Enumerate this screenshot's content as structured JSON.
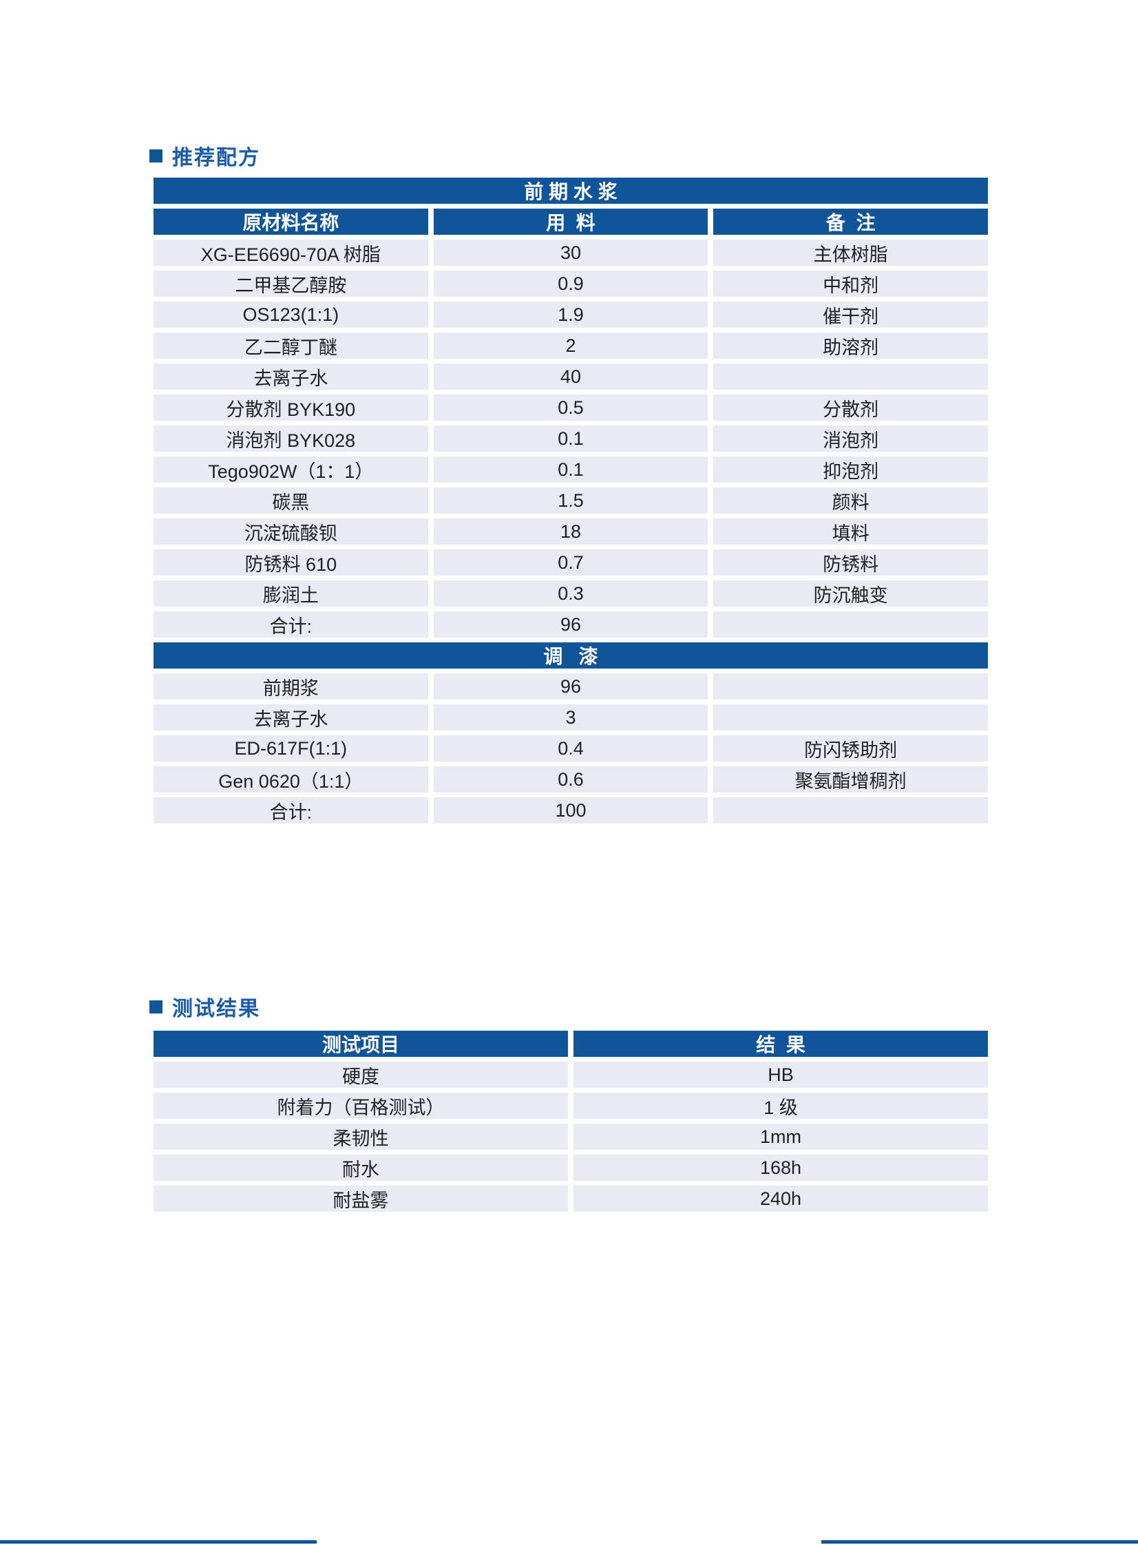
{
  "colors": {
    "table_header_blue": "#10559a",
    "section_title_blue": "#1a5ba9",
    "row_background": "#e9eaf3",
    "cell_text": "#1f2022"
  },
  "section1": {
    "title": "推荐配方",
    "table": {
      "group1_title": "前 期 水 浆",
      "columns": [
        "原材料名称",
        "用  料",
        "备  注"
      ],
      "group1_rows": [
        [
          "XG-EE6690-70A 树脂",
          "30",
          "主体树脂"
        ],
        [
          "二甲基乙醇胺",
          "0.9",
          "中和剂"
        ],
        [
          "OS123(1:1)",
          "1.9",
          "催干剂"
        ],
        [
          "乙二醇丁醚",
          "2",
          "助溶剂"
        ],
        [
          "去离子水",
          "40",
          ""
        ],
        [
          "分散剂 BYK190",
          "0.5",
          "分散剂"
        ],
        [
          "消泡剂 BYK028",
          "0.1",
          "消泡剂"
        ],
        [
          "Tego902W（1：1）",
          "0.1",
          "抑泡剂"
        ],
        [
          "碳黑",
          "1.5",
          "颜料"
        ],
        [
          "沉淀硫酸钡",
          "18",
          "填料"
        ],
        [
          "防锈料 610",
          "0.7",
          "防锈料"
        ],
        [
          "膨润土",
          "0.3",
          "防沉触变"
        ],
        [
          "合计:",
          "96",
          ""
        ]
      ],
      "group2_title": "调   漆",
      "group2_rows": [
        [
          "前期浆",
          "96",
          ""
        ],
        [
          "去离子水",
          "3",
          ""
        ],
        [
          "ED-617F(1:1)",
          "0.4",
          "防闪锈助剂"
        ],
        [
          "Gen 0620（1:1）",
          "0.6",
          "聚氨酯增稠剂"
        ],
        [
          "合计:",
          "100",
          ""
        ]
      ]
    }
  },
  "section2": {
    "title": "测试结果",
    "table": {
      "columns": [
        "测试项目",
        "结  果"
      ],
      "rows": [
        [
          "硬度",
          "HB"
        ],
        [
          "附着力（百格测试）",
          "1 级"
        ],
        [
          "柔韧性",
          "1mm"
        ],
        [
          "耐水",
          "168h"
        ],
        [
          "耐盐雾",
          "240h"
        ]
      ]
    }
  }
}
